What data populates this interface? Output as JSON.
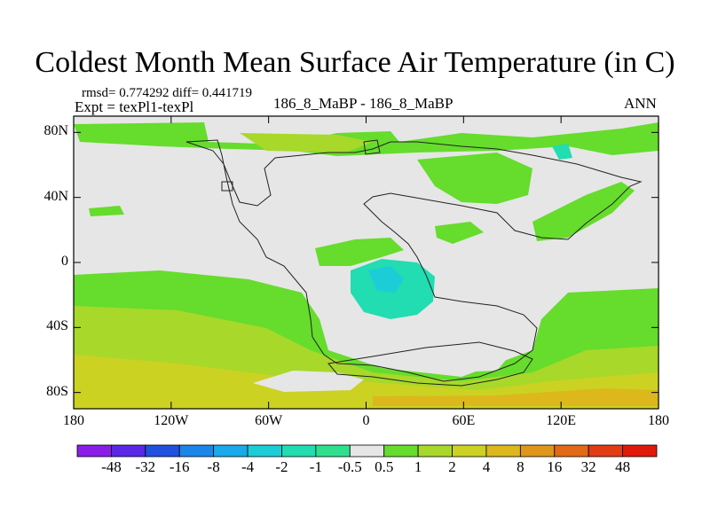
{
  "chart_data": {
    "type": "heatmap",
    "title": "Coldest Month Mean Surface Air Temperature (in C)",
    "stats_line": "rmsd= 0.774292  diff= 0.441719",
    "expt_line": "Expt = texPl1-texPl",
    "center_label": "186_8_MaBP - 186_8_MaBP",
    "right_label": "ANN",
    "x_ticks": [
      "180",
      "120W",
      "60W",
      "0",
      "60E",
      "120E",
      "180"
    ],
    "y_ticks": [
      "80N",
      "40N",
      "0",
      "40S",
      "80S"
    ],
    "xlim": [
      -180,
      180
    ],
    "ylim": [
      -90,
      90
    ],
    "colorbar": {
      "labels": [
        "-48",
        "-32",
        "-16",
        "-8",
        "-4",
        "-2",
        "-1",
        "-0.5",
        "0.5",
        "1",
        "2",
        "4",
        "8",
        "16",
        "32",
        "48"
      ],
      "colors": [
        "#8a1ee8",
        "#5a28e6",
        "#2050e0",
        "#1a86ea",
        "#18aaea",
        "#1ccdd8",
        "#22dcb2",
        "#2ee08e",
        "#e6e6e6",
        "#66dc2c",
        "#a8d82a",
        "#ccd222",
        "#dcb81c",
        "#e0961a",
        "#e26a16",
        "#e23c14",
        "#e01a0a"
      ]
    }
  }
}
